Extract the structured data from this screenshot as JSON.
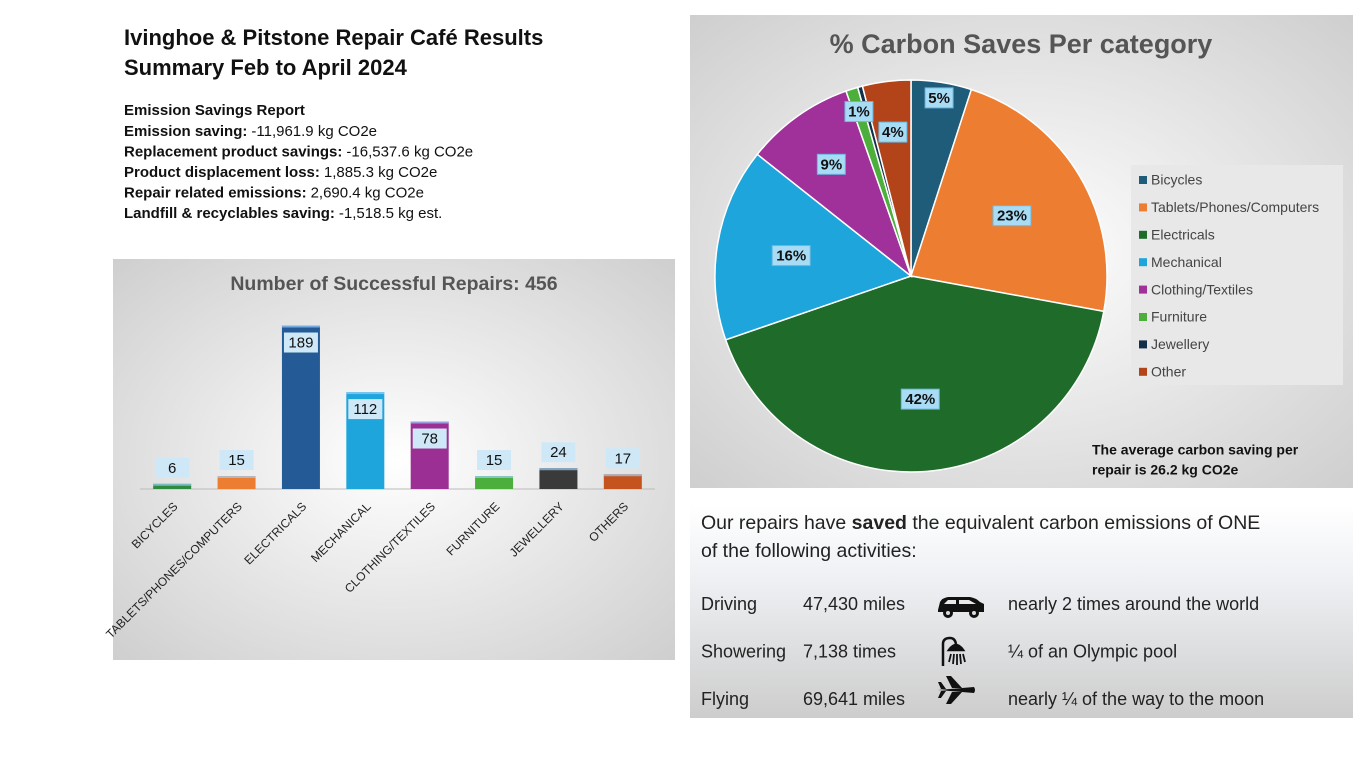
{
  "header": {
    "title": [
      "Ivinghoe & Pitstone Repair Café Results",
      "Summary Feb to April 2024"
    ]
  },
  "report": {
    "heading": "Emission Savings Report",
    "items": [
      {
        "label": "Emission saving:",
        "value": "-11,961.9 kg CO2e"
      },
      {
        "label": "Replacement product savings:",
        "value": "-16,537.6 kg CO2e"
      },
      {
        "label": "Product displacement loss:",
        "value": "1,885.3 kg CO2e"
      },
      {
        "label": "Repair related emissions:",
        "value": "2,690.4 kg CO2e"
      },
      {
        "label": "Landfill & recyclables saving:",
        "value": "-1,518.5 kg est."
      }
    ]
  },
  "chart_data": [
    {
      "type": "bar",
      "title": "Number of Successful Repairs: 456",
      "categories": [
        "BICYCLES",
        "TABLETS/PHONES/COMPUTERS",
        "ELECTRICALS",
        "MECHANICAL",
        "CLOTHING/TEXTILES",
        "FURNITURE",
        "JEWELLERY",
        "OTHERS"
      ],
      "values": [
        6,
        15,
        189,
        112,
        78,
        15,
        24,
        17
      ],
      "colors": [
        "#2e8b3e",
        "#ed7d31",
        "#245a96",
        "#1ea5dc",
        "#9b2f94",
        "#4caf3c",
        "#3a3a3a",
        "#c5531d"
      ],
      "ylim": [
        0,
        200
      ]
    },
    {
      "type": "pie",
      "title": "% Carbon Saves Per category",
      "categories": [
        "Bicycles",
        "Tablets/Phones/Computers",
        "Electricals",
        "Mechanical",
        "Clothing/Textiles",
        "Furniture",
        "Jewellery",
        "Other"
      ],
      "values": [
        5,
        23,
        42,
        16,
        9,
        1,
        0.4,
        4
      ],
      "value_labels": [
        "5%",
        "23%",
        "42%",
        "16%",
        "9%",
        "1%",
        null,
        "4%"
      ],
      "colors": [
        "#1f5c7a",
        "#ed7d31",
        "#1e6b2a",
        "#1ea5dc",
        "#a0309a",
        "#4caf3c",
        "#12304a",
        "#b3441a"
      ],
      "annotation": [
        "The average carbon saving per",
        "repair is 26.2 kg CO2e"
      ],
      "legend": "right"
    }
  ],
  "activities": {
    "intro": [
      "Our repairs have ",
      "saved",
      " the equivalent carbon emissions of ONE",
      "of the following activities:"
    ],
    "rows": [
      {
        "activity": "Driving",
        "amount": "47,430 miles",
        "comparison": "nearly 2 times around the world"
      },
      {
        "activity": "Showering",
        "amount": "7,138 times",
        "comparison": "¼ of an Olympic pool"
      },
      {
        "activity": "Flying",
        "amount": "69,641 miles",
        "comparison": "nearly ¼ of the way to the moon"
      }
    ]
  }
}
